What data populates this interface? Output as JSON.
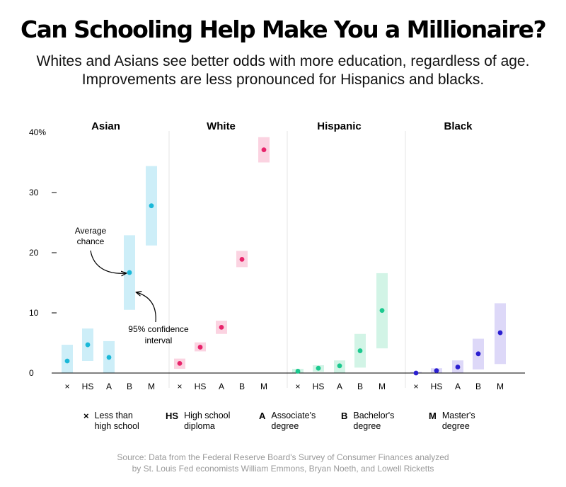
{
  "title": "Can Schooling Help Make You a Millionaire?",
  "subtitle": {
    "line1": "Whites and Asians see better odds with more education, regardless of age.",
    "line2": "Improvements are less pronounced for Hispanics and blacks."
  },
  "annotations": {
    "average": [
      "Average",
      "chance"
    ],
    "ci": [
      "95% confidence",
      "interval"
    ]
  },
  "legend": [
    {
      "key": "×",
      "label": "Less than high school"
    },
    {
      "key": "HS",
      "label": "High school diploma"
    },
    {
      "key": "A",
      "label": "Associate's degree"
    },
    {
      "key": "B",
      "label": "Bachelor's degree"
    },
    {
      "key": "M",
      "label": "Master's degree"
    }
  ],
  "source": {
    "line1": "Source: Data from the Federal Reserve Board's Survey of Consumer Finances analyzed",
    "line2": "by St. Louis Fed economists William Emmons, Bryan Noeth, and Lowell Ricketts"
  },
  "chart_data": {
    "type": "scatter",
    "categories": [
      "×",
      "HS",
      "A",
      "B",
      "M"
    ],
    "y_ticks": [
      "40%",
      "30",
      "20",
      "10",
      "0"
    ],
    "ylim": [
      0,
      40
    ],
    "grid": false,
    "groups": [
      {
        "name": "Asian",
        "color": "#1ab8d8",
        "band_color": "#cdeef8",
        "points": [
          {
            "value": 2.0,
            "low": 0.0,
            "high": 4.7
          },
          {
            "value": 4.7,
            "low": 2.0,
            "high": 7.4
          },
          {
            "value": 2.6,
            "low": 0.0,
            "high": 5.3
          },
          {
            "value": 16.7,
            "low": 10.5,
            "high": 22.9
          },
          {
            "value": 27.8,
            "low": 21.2,
            "high": 34.4
          }
        ]
      },
      {
        "name": "White",
        "color": "#e8246b",
        "band_color": "#fbd3e1",
        "points": [
          {
            "value": 1.6,
            "low": 0.7,
            "high": 2.4
          },
          {
            "value": 4.3,
            "low": 3.6,
            "high": 5.1
          },
          {
            "value": 7.6,
            "low": 6.5,
            "high": 8.7
          },
          {
            "value": 18.9,
            "low": 17.6,
            "high": 20.3
          },
          {
            "value": 37.1,
            "low": 35.0,
            "high": 39.2
          }
        ]
      },
      {
        "name": "Hispanic",
        "color": "#1cc98f",
        "band_color": "#d2f4e6",
        "points": [
          {
            "value": 0.3,
            "low": 0.0,
            "high": 0.7
          },
          {
            "value": 0.8,
            "low": 0.2,
            "high": 1.3
          },
          {
            "value": 1.2,
            "low": 0.0,
            "high": 2.1
          },
          {
            "value": 3.7,
            "low": 0.9,
            "high": 6.5
          },
          {
            "value": 10.4,
            "low": 4.1,
            "high": 16.6
          }
        ]
      },
      {
        "name": "Black",
        "color": "#2b1fd0",
        "band_color": "#ddd8f8",
        "points": [
          {
            "value": 0.0,
            "low": 0.0,
            "high": 0.2
          },
          {
            "value": 0.4,
            "low": 0.0,
            "high": 0.8
          },
          {
            "value": 1.0,
            "low": 0.0,
            "high": 2.1
          },
          {
            "value": 3.2,
            "low": 0.6,
            "high": 5.7
          },
          {
            "value": 6.7,
            "low": 1.5,
            "high": 11.6
          }
        ]
      }
    ]
  }
}
